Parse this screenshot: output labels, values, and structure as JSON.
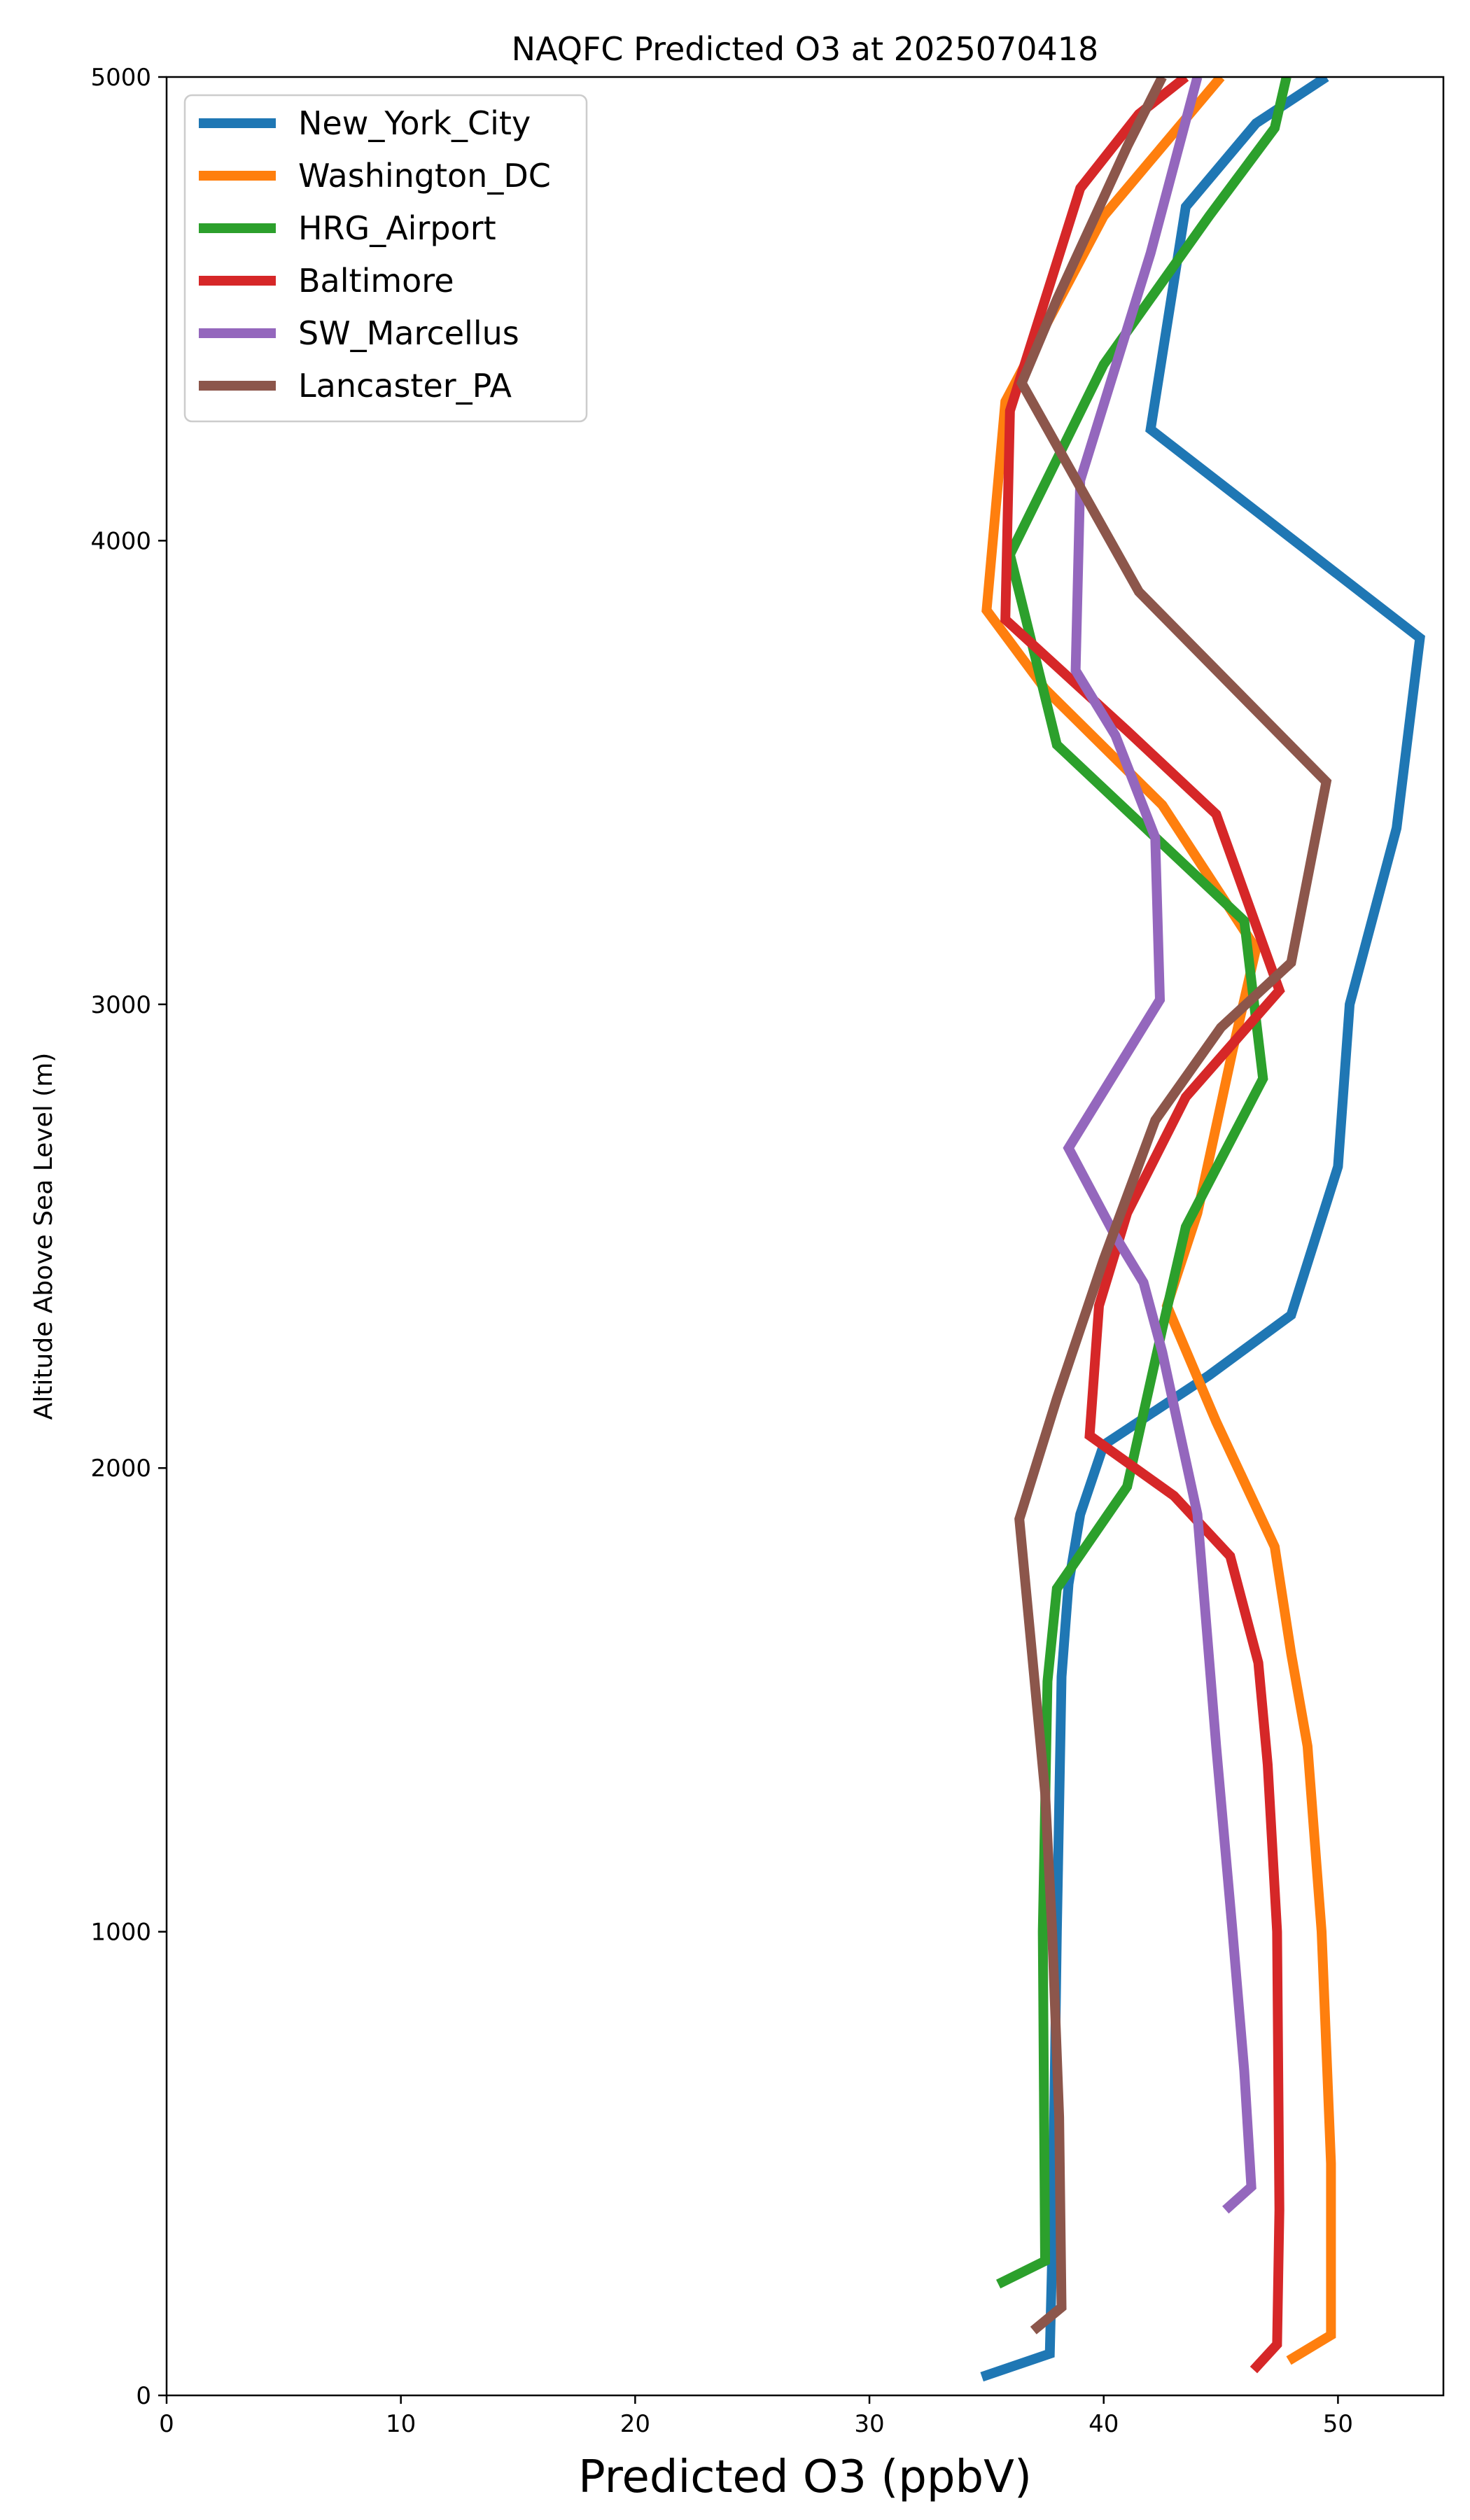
{
  "chart_data": {
    "type": "line",
    "title": "NAQFC Predicted O3 at 2025070418",
    "xlabel": "Predicted O3 (ppbV)",
    "ylabel": "Altitude Above Sea Level (m)",
    "xlim": [
      0,
      54.5
    ],
    "ylim": [
      0,
      5000
    ],
    "xticks": [
      0,
      10,
      20,
      30,
      40,
      50
    ],
    "yticks": [
      0,
      1000,
      2000,
      3000,
      4000,
      5000
    ],
    "grid": false,
    "legend_position": "top-left",
    "series": [
      {
        "name": "New_York_City",
        "color": "#1f77b4",
        "points": [
          [
            34.8,
            40
          ],
          [
            37.7,
            90
          ],
          [
            37.8,
            300
          ],
          [
            38.0,
            1000
          ],
          [
            38.2,
            1550
          ],
          [
            38.5,
            1750
          ],
          [
            39.0,
            1900
          ],
          [
            40.0,
            2050
          ],
          [
            44.5,
            2200
          ],
          [
            48.0,
            2330
          ],
          [
            50.0,
            2650
          ],
          [
            50.5,
            3000
          ],
          [
            52.5,
            3380
          ],
          [
            53.5,
            3790
          ],
          [
            42.0,
            4240
          ],
          [
            43.5,
            4720
          ],
          [
            46.5,
            4900
          ],
          [
            49.5,
            5000
          ]
        ]
      },
      {
        "name": "Washington_DC",
        "color": "#ff7f0e",
        "points": [
          [
            47.9,
            75
          ],
          [
            49.7,
            130
          ],
          [
            49.7,
            500
          ],
          [
            49.3,
            1000
          ],
          [
            48.7,
            1400
          ],
          [
            48.0,
            1600
          ],
          [
            47.3,
            1830
          ],
          [
            44.8,
            2100
          ],
          [
            42.7,
            2350
          ],
          [
            44.0,
            2550
          ],
          [
            45.5,
            2900
          ],
          [
            46.5,
            3120
          ],
          [
            42.5,
            3430
          ],
          [
            37.5,
            3680
          ],
          [
            35.0,
            3850
          ],
          [
            35.8,
            4300
          ],
          [
            40.0,
            4700
          ],
          [
            45.0,
            5000
          ]
        ]
      },
      {
        "name": "HRG_Airport",
        "color": "#2ca02c",
        "points": [
          [
            35.5,
            240
          ],
          [
            37.5,
            290
          ],
          [
            37.4,
            1000
          ],
          [
            37.6,
            1540
          ],
          [
            38.0,
            1740
          ],
          [
            41.0,
            1960
          ],
          [
            42.5,
            2300
          ],
          [
            43.5,
            2520
          ],
          [
            46.8,
            2840
          ],
          [
            46.0,
            3180
          ],
          [
            38.0,
            3560
          ],
          [
            36.0,
            3970
          ],
          [
            40.0,
            4380
          ],
          [
            44.5,
            4700
          ],
          [
            47.3,
            4890
          ],
          [
            47.8,
            5000
          ]
        ]
      },
      {
        "name": "Baltimore",
        "color": "#d62728",
        "points": [
          [
            46.4,
            55
          ],
          [
            47.4,
            110
          ],
          [
            47.5,
            400
          ],
          [
            47.4,
            1000
          ],
          [
            47.0,
            1360
          ],
          [
            46.6,
            1580
          ],
          [
            45.4,
            1810
          ],
          [
            43.0,
            1940
          ],
          [
            39.4,
            2070
          ],
          [
            39.8,
            2350
          ],
          [
            41.0,
            2550
          ],
          [
            43.5,
            2800
          ],
          [
            47.5,
            3030
          ],
          [
            44.8,
            3410
          ],
          [
            41.0,
            3590
          ],
          [
            35.8,
            3830
          ],
          [
            36.0,
            4280
          ],
          [
            39.0,
            4760
          ],
          [
            41.5,
            4920
          ],
          [
            43.5,
            5000
          ]
        ]
      },
      {
        "name": "SW_Marcellus",
        "color": "#9467bd",
        "points": [
          [
            45.2,
            400
          ],
          [
            46.3,
            450
          ],
          [
            46.0,
            700
          ],
          [
            45.5,
            1000
          ],
          [
            44.8,
            1400
          ],
          [
            44.0,
            1900
          ],
          [
            42.5,
            2250
          ],
          [
            41.7,
            2400
          ],
          [
            40.5,
            2500
          ],
          [
            38.5,
            2690
          ],
          [
            42.4,
            3010
          ],
          [
            42.2,
            3360
          ],
          [
            40.5,
            3580
          ],
          [
            38.8,
            3720
          ],
          [
            39.0,
            4130
          ],
          [
            42.0,
            4620
          ],
          [
            44.0,
            5000
          ]
        ]
      },
      {
        "name": "Lancaster_PA",
        "color": "#8c564b",
        "points": [
          [
            37.0,
            140
          ],
          [
            38.2,
            190
          ],
          [
            38.1,
            600
          ],
          [
            37.8,
            1000
          ],
          [
            37.5,
            1300
          ],
          [
            36.4,
            1890
          ],
          [
            38.0,
            2150
          ],
          [
            40.0,
            2450
          ],
          [
            42.2,
            2750
          ],
          [
            45.0,
            2950
          ],
          [
            48.0,
            3090
          ],
          [
            49.5,
            3480
          ],
          [
            41.5,
            3890
          ],
          [
            36.5,
            4340
          ],
          [
            38.0,
            4520
          ],
          [
            41.0,
            4850
          ],
          [
            42.5,
            5000
          ]
        ]
      }
    ]
  }
}
